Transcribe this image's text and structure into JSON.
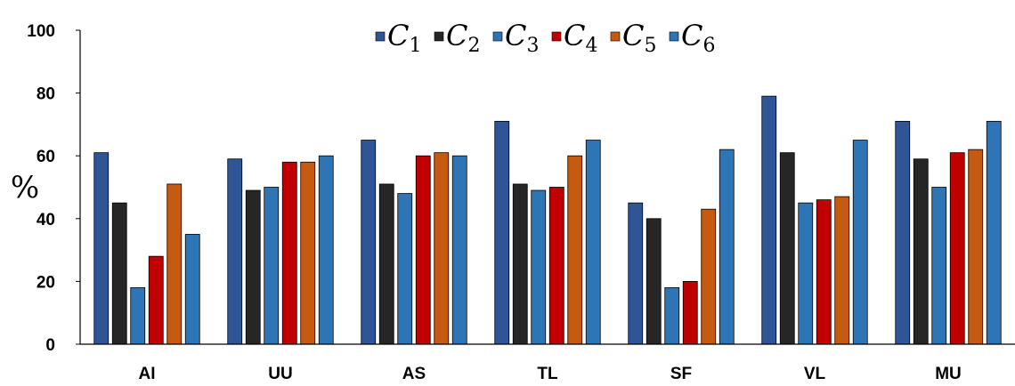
{
  "chart_data": {
    "type": "bar",
    "title": "",
    "xlabel": "",
    "ylabel": "%",
    "ylim": [
      0,
      100
    ],
    "yticks": [
      0,
      20,
      40,
      60,
      80,
      100
    ],
    "grid": false,
    "legend_position": "top",
    "categories": [
      "AI",
      "UU",
      "AS",
      "TL",
      "SF",
      "VL",
      "MU"
    ],
    "series": [
      {
        "name": "C1",
        "base": "C",
        "sub": "1",
        "color": "#2f5597",
        "values": [
          61,
          59,
          65,
          71,
          45,
          79,
          71
        ]
      },
      {
        "name": "C2",
        "base": "C",
        "sub": "2",
        "color": "#262626",
        "values": [
          45,
          49,
          51,
          51,
          40,
          61,
          59
        ]
      },
      {
        "name": "C3",
        "base": "C",
        "sub": "3",
        "color": "#2e75b6",
        "values": [
          18,
          50,
          48,
          49,
          18,
          45,
          50
        ]
      },
      {
        "name": "C4",
        "base": "C",
        "sub": "4",
        "color": "#c00000",
        "values": [
          28,
          58,
          60,
          50,
          20,
          46,
          61
        ]
      },
      {
        "name": "C5",
        "base": "C",
        "sub": "5",
        "color": "#c55a11",
        "values": [
          51,
          58,
          61,
          60,
          43,
          47,
          62
        ]
      },
      {
        "name": "C6",
        "base": "C",
        "sub": "6",
        "color": "#2e75b6",
        "values": [
          35,
          60,
          60,
          65,
          62,
          65,
          71
        ]
      }
    ]
  }
}
